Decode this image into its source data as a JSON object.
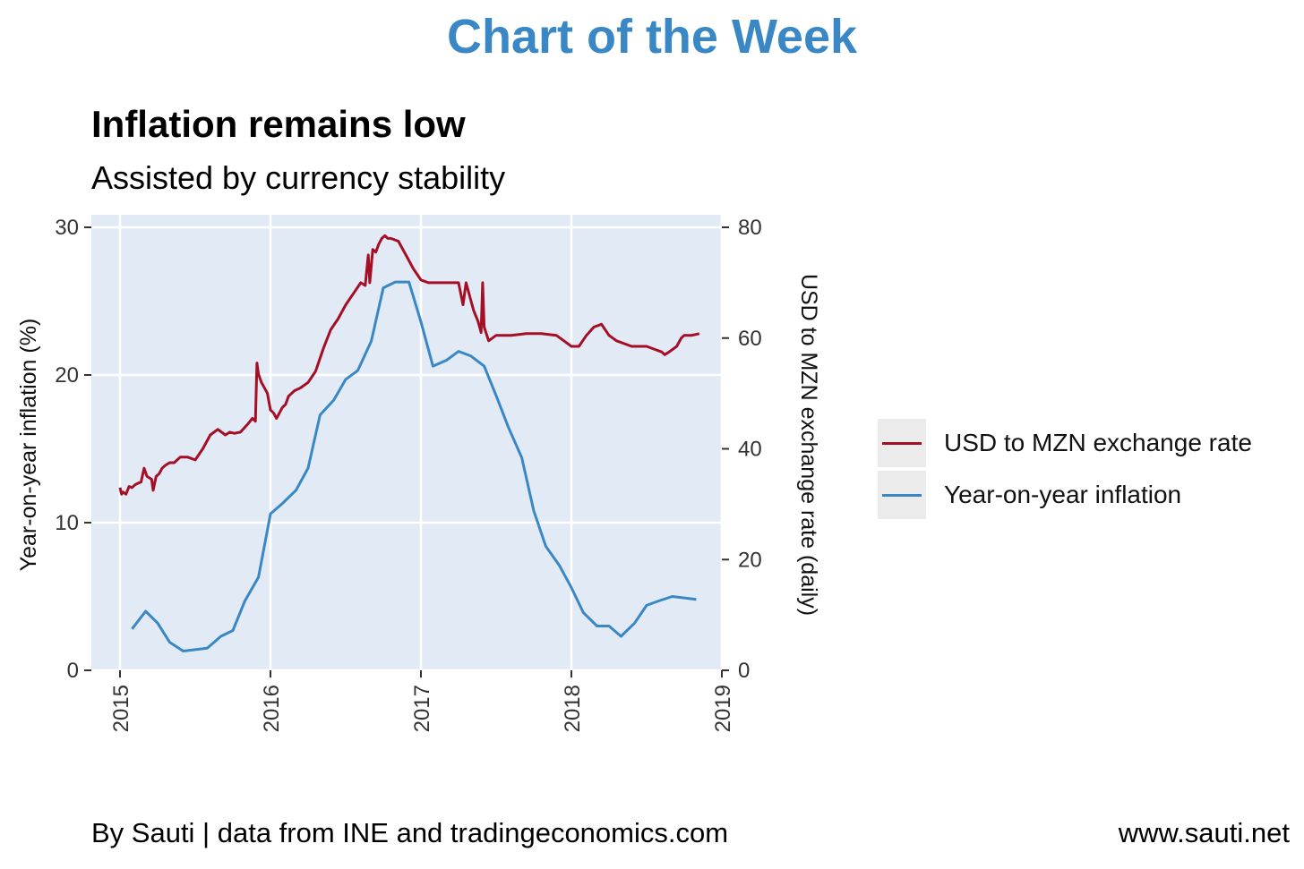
{
  "header": {
    "title": "Chart of the Week"
  },
  "footer": {
    "left": "By Sauti | data from INE and tradingeconomics.com",
    "right": "www.sauti.net"
  },
  "colors": {
    "exchange": "#a50f26",
    "inflation": "#3a87c6",
    "panel": "#e2eaf5",
    "grid": "#ffffff",
    "header": "#3a87c6"
  },
  "chart_data": {
    "type": "line",
    "title": "Inflation remains low",
    "subtitle": "Assisted by currency stability",
    "xlabel": "",
    "ylabel": "Year-on-year inflation (%)",
    "ylabel_right": "USD to MZN exchange rate (daily)",
    "xlim": [
      2015,
      2019
    ],
    "ylim": [
      0,
      30
    ],
    "ylim_right": [
      0,
      80
    ],
    "x_ticks": [
      "2015",
      "2016",
      "2017",
      "2018",
      "2019"
    ],
    "y_ticks": [
      "0",
      "10",
      "20",
      "30"
    ],
    "y_ticks_right": [
      "0",
      "20",
      "40",
      "60",
      "80"
    ],
    "grid": true,
    "legend_position": "right",
    "series": [
      {
        "name": "USD to MZN exchange rate",
        "axis": "right",
        "x": [
          2015.0,
          2015.01,
          2015.02,
          2015.04,
          2015.06,
          2015.08,
          2015.1,
          2015.12,
          2015.14,
          2015.16,
          2015.18,
          2015.21,
          2015.22,
          2015.24,
          2015.26,
          2015.28,
          2015.3,
          2015.33,
          2015.36,
          2015.4,
          2015.45,
          2015.5,
          2015.55,
          2015.6,
          2015.65,
          2015.7,
          2015.73,
          2015.76,
          2015.8,
          2015.85,
          2015.88,
          2015.9,
          2015.91,
          2015.92,
          2015.94,
          2015.96,
          2015.98,
          2016.0,
          2016.02,
          2016.04,
          2016.06,
          2016.08,
          2016.1,
          2016.12,
          2016.16,
          2016.2,
          2016.25,
          2016.3,
          2016.35,
          2016.4,
          2016.45,
          2016.5,
          2016.55,
          2016.6,
          2016.63,
          2016.65,
          2016.66,
          2016.68,
          2016.7,
          2016.72,
          2016.74,
          2016.76,
          2016.78,
          2016.8,
          2016.85,
          2016.9,
          2016.95,
          2017.0,
          2017.05,
          2017.1,
          2017.15,
          2017.2,
          2017.25,
          2017.28,
          2017.3,
          2017.33,
          2017.35,
          2017.38,
          2017.4,
          2017.41,
          2017.42,
          2017.45,
          2017.5,
          2017.6,
          2017.7,
          2017.8,
          2017.9,
          2017.95,
          2018.0,
          2018.05,
          2018.1,
          2018.15,
          2018.2,
          2018.25,
          2018.3,
          2018.35,
          2018.4,
          2018.45,
          2018.5,
          2018.55,
          2018.6,
          2018.62,
          2018.65,
          2018.7,
          2018.73,
          2018.75,
          2018.8,
          2018.85
        ],
        "values": [
          33,
          31.8,
          32.2,
          31.8,
          33.2,
          33,
          33.5,
          33.8,
          34,
          36.5,
          35,
          34.5,
          32.5,
          35,
          35.5,
          36.5,
          37,
          37.5,
          37.5,
          38.5,
          38.5,
          38,
          40,
          42.5,
          43.5,
          42.5,
          43,
          42.8,
          43,
          44.5,
          45.5,
          45,
          55.5,
          53.5,
          52,
          51,
          50,
          47,
          46.5,
          45.5,
          46.5,
          47.5,
          48,
          49.5,
          50.5,
          51,
          52,
          54,
          58,
          61.5,
          63.5,
          66,
          68,
          70,
          69.5,
          75,
          70,
          76,
          75.5,
          77,
          78,
          78.5,
          78,
          78,
          77.5,
          75,
          72.5,
          70.5,
          70,
          70,
          70,
          70,
          70,
          66,
          70,
          67,
          65,
          63,
          61,
          70,
          62,
          59.5,
          60.5,
          60.5,
          60.8,
          60.8,
          60.5,
          59.5,
          58.5,
          58.5,
          60.5,
          62,
          62.5,
          60.5,
          59.5,
          59,
          58.5,
          58.5,
          58.5,
          58,
          57.5,
          57,
          57.5,
          58.5,
          60,
          60.5,
          60.5,
          60.8
        ]
      },
      {
        "name": "Year-on-year inflation",
        "axis": "left",
        "x": [
          2015.08,
          2015.17,
          2015.25,
          2015.33,
          2015.42,
          2015.58,
          2015.67,
          2015.75,
          2015.83,
          2015.92,
          2016.0,
          2016.08,
          2016.17,
          2016.25,
          2016.33,
          2016.42,
          2016.5,
          2016.58,
          2016.67,
          2016.75,
          2016.83,
          2016.92,
          2017.0,
          2017.08,
          2017.17,
          2017.25,
          2017.33,
          2017.42,
          2017.5,
          2017.58,
          2017.67,
          2017.75,
          2017.83,
          2017.92,
          2018.0,
          2018.08,
          2018.17,
          2018.25,
          2018.33,
          2018.42,
          2018.5,
          2018.58,
          2018.67,
          2018.83
        ],
        "values": [
          2.8,
          4.0,
          3.2,
          1.9,
          1.3,
          1.5,
          2.3,
          2.7,
          4.7,
          6.3,
          10.6,
          11.3,
          12.2,
          13.7,
          17.3,
          18.3,
          19.7,
          20.3,
          22.3,
          25.9,
          26.3,
          26.3,
          23.6,
          20.6,
          21.0,
          21.6,
          21.3,
          20.6,
          18.6,
          16.5,
          14.4,
          10.8,
          8.4,
          7.1,
          5.6,
          3.9,
          3.0,
          3.0,
          2.3,
          3.2,
          4.4,
          4.7,
          5.0,
          4.8
        ]
      }
    ]
  }
}
